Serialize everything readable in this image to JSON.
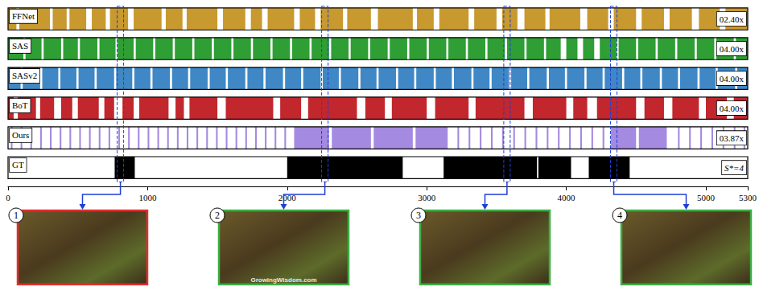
{
  "chart_data": {
    "type": "timeline",
    "xlim": [
      0,
      5300
    ],
    "xticks": [
      0,
      1000,
      2000,
      3000,
      4000,
      5000
    ],
    "series": [
      {
        "name": "FFNet",
        "color": "#c8992f",
        "speedup": "02.40x",
        "segments": [
          [
            0,
            60
          ],
          [
            80,
            300
          ],
          [
            320,
            420
          ],
          [
            440,
            560
          ],
          [
            600,
            700
          ],
          [
            730,
            860
          ],
          [
            900,
            1100
          ],
          [
            1130,
            1250
          ],
          [
            1280,
            1500
          ],
          [
            1540,
            1700
          ],
          [
            1740,
            1820
          ],
          [
            1860,
            2050
          ],
          [
            2090,
            2200
          ],
          [
            2240,
            2400
          ],
          [
            2430,
            2600
          ],
          [
            2650,
            2900
          ],
          [
            2930,
            3050
          ],
          [
            3090,
            3300
          ],
          [
            3340,
            3500
          ],
          [
            3540,
            3650
          ],
          [
            3700,
            3850
          ],
          [
            3880,
            4100
          ],
          [
            4150,
            4300
          ],
          [
            4340,
            4500
          ],
          [
            4540,
            4700
          ],
          [
            4740,
            4900
          ],
          [
            4950,
            5100
          ],
          [
            5140,
            5300
          ]
        ]
      },
      {
        "name": "SAS",
        "color": "#2f9e35",
        "speedup": "04.00x",
        "segments": [
          [
            0,
            110
          ],
          [
            125,
            240
          ],
          [
            255,
            380
          ],
          [
            395,
            500
          ],
          [
            515,
            640
          ],
          [
            655,
            770
          ],
          [
            785,
            900
          ],
          [
            915,
            1040
          ],
          [
            1055,
            1180
          ],
          [
            1195,
            1320
          ],
          [
            1335,
            1460
          ],
          [
            1475,
            1600
          ],
          [
            1615,
            1740
          ],
          [
            1755,
            1880
          ],
          [
            1895,
            2020
          ],
          [
            2035,
            2160
          ],
          [
            2175,
            2300
          ],
          [
            2315,
            2440
          ],
          [
            2455,
            2580
          ],
          [
            2595,
            2720
          ],
          [
            2735,
            2860
          ],
          [
            2875,
            3000
          ],
          [
            3015,
            3140
          ],
          [
            3155,
            3280
          ],
          [
            3295,
            3420
          ],
          [
            3435,
            3560
          ],
          [
            3575,
            3700
          ],
          [
            3715,
            3840
          ],
          [
            3855,
            3960
          ],
          [
            4000,
            4080
          ],
          [
            4120,
            4200
          ],
          [
            4240,
            4360
          ],
          [
            4375,
            4500
          ],
          [
            4515,
            4640
          ],
          [
            4655,
            4780
          ],
          [
            4795,
            4920
          ],
          [
            4935,
            5060
          ],
          [
            5075,
            5200
          ],
          [
            5215,
            5300
          ]
        ]
      },
      {
        "name": "SASv2",
        "color": "#3f88c5",
        "speedup": "04.00x",
        "segments": [
          [
            0,
            90
          ],
          [
            105,
            230
          ],
          [
            245,
            360
          ],
          [
            375,
            490
          ],
          [
            505,
            620
          ],
          [
            635,
            760
          ],
          [
            775,
            890
          ],
          [
            905,
            1020
          ],
          [
            1035,
            1160
          ],
          [
            1175,
            1290
          ],
          [
            1305,
            1430
          ],
          [
            1445,
            1560
          ],
          [
            1575,
            1700
          ],
          [
            1715,
            1830
          ],
          [
            1845,
            1970
          ],
          [
            1985,
            2100
          ],
          [
            2115,
            2240
          ],
          [
            2255,
            2370
          ],
          [
            2385,
            2510
          ],
          [
            2525,
            2640
          ],
          [
            2655,
            2780
          ],
          [
            2795,
            2910
          ],
          [
            2925,
            3050
          ],
          [
            3065,
            3180
          ],
          [
            3195,
            3320
          ],
          [
            3335,
            3450
          ],
          [
            3465,
            3590
          ],
          [
            3605,
            3720
          ],
          [
            3735,
            3860
          ],
          [
            3875,
            3990
          ],
          [
            4005,
            4130
          ],
          [
            4145,
            4260
          ],
          [
            4275,
            4400
          ],
          [
            4415,
            4530
          ],
          [
            4545,
            4670
          ],
          [
            4685,
            4800
          ],
          [
            4815,
            4940
          ],
          [
            4955,
            5070
          ],
          [
            5085,
            5210
          ],
          [
            5225,
            5300
          ]
        ]
      },
      {
        "name": "BoT",
        "color": "#c1272d",
        "speedup": "04.00x",
        "segments": [
          [
            0,
            40
          ],
          [
            70,
            200
          ],
          [
            230,
            330
          ],
          [
            380,
            460
          ],
          [
            500,
            650
          ],
          [
            690,
            760
          ],
          [
            820,
            900
          ],
          [
            940,
            1150
          ],
          [
            1200,
            1260
          ],
          [
            1300,
            1500
          ],
          [
            1560,
            1900
          ],
          [
            1950,
            2100
          ],
          [
            2150,
            2500
          ],
          [
            2560,
            2700
          ],
          [
            2750,
            3000
          ],
          [
            3060,
            3300
          ],
          [
            3350,
            3700
          ],
          [
            3760,
            4000
          ],
          [
            4050,
            4150
          ],
          [
            4220,
            4500
          ],
          [
            4560,
            4700
          ],
          [
            4760,
            4950
          ],
          [
            5000,
            5150
          ],
          [
            5200,
            5300
          ]
        ]
      },
      {
        "name": "Ours",
        "color": "#a48ae0",
        "speedup": "03.87x",
        "segments": [
          [
            20,
            32
          ],
          [
            90,
            102
          ],
          [
            160,
            172
          ],
          [
            230,
            242
          ],
          [
            300,
            312
          ],
          [
            370,
            382
          ],
          [
            440,
            452
          ],
          [
            510,
            522
          ],
          [
            580,
            592
          ],
          [
            650,
            662
          ],
          [
            720,
            732
          ],
          [
            790,
            802
          ],
          [
            860,
            872
          ],
          [
            930,
            942
          ],
          [
            1000,
            1012
          ],
          [
            1070,
            1082
          ],
          [
            1140,
            1152
          ],
          [
            1210,
            1222
          ],
          [
            1280,
            1292
          ],
          [
            1350,
            1362
          ],
          [
            1420,
            1432
          ],
          [
            1490,
            1502
          ],
          [
            1560,
            1572
          ],
          [
            1630,
            1642
          ],
          [
            1700,
            1712
          ],
          [
            1770,
            1782
          ],
          [
            1840,
            1852
          ],
          [
            1910,
            1922
          ],
          [
            1980,
            1992
          ],
          [
            2050,
            2300
          ],
          [
            2320,
            2600
          ],
          [
            2620,
            2900
          ],
          [
            2920,
            3150
          ],
          [
            3220,
            3232
          ],
          [
            3300,
            3312
          ],
          [
            3380,
            3392
          ],
          [
            3460,
            3472
          ],
          [
            3540,
            3552
          ],
          [
            3620,
            3632
          ],
          [
            3700,
            3712
          ],
          [
            3780,
            3792
          ],
          [
            3860,
            3872
          ],
          [
            3940,
            3952
          ],
          [
            4020,
            4032
          ],
          [
            4100,
            4112
          ],
          [
            4180,
            4192
          ],
          [
            4260,
            4272
          ],
          [
            4320,
            4500
          ],
          [
            4520,
            4720
          ],
          [
            4800,
            4812
          ],
          [
            4880,
            4892
          ],
          [
            4960,
            4972
          ],
          [
            5040,
            5052
          ],
          [
            5120,
            5132
          ],
          [
            5200,
            5212
          ],
          [
            5270,
            5282
          ]
        ]
      },
      {
        "name": "GT",
        "color": "#000000",
        "speedup": "S*=4",
        "segments": [
          [
            764,
            908
          ],
          [
            2000,
            2828
          ],
          [
            3121,
            3790
          ],
          [
            3800,
            4034
          ],
          [
            4161,
            4454
          ]
        ]
      }
    ],
    "frames": [
      {
        "label": "1",
        "frame": 805,
        "color": "#e0302e"
      },
      {
        "label": "2",
        "frame": 2270,
        "color": "#3cb043",
        "watermark": "GrowingWisdom.com"
      },
      {
        "label": "3",
        "frame": 3575,
        "color": "#3cb043"
      },
      {
        "label": "4",
        "frame": 4340,
        "color": "#3cb043"
      }
    ]
  }
}
